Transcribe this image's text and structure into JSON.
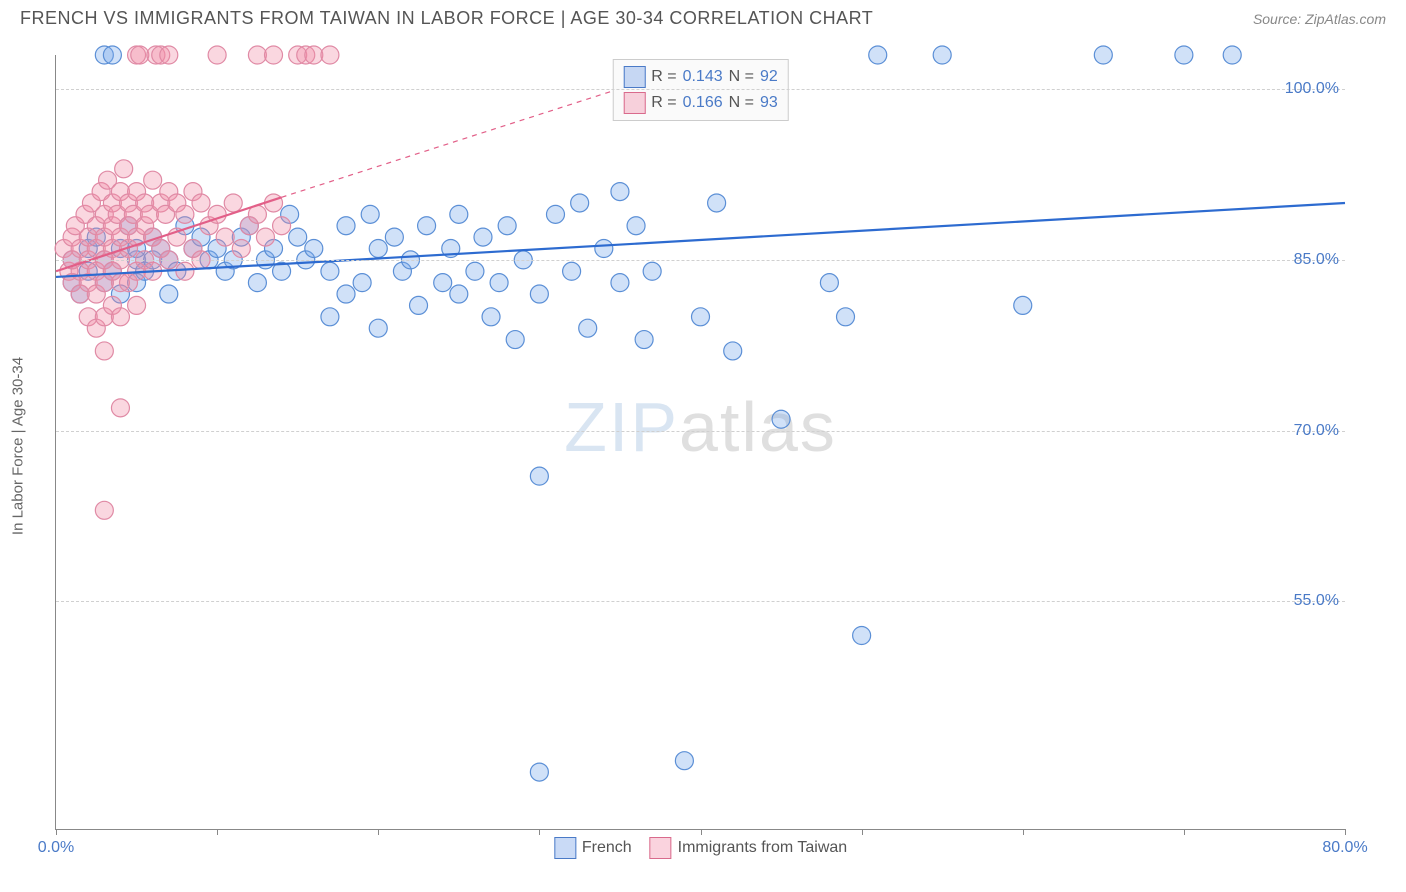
{
  "header": {
    "title": "FRENCH VS IMMIGRANTS FROM TAIWAN IN LABOR FORCE | AGE 30-34 CORRELATION CHART",
    "source_prefix": "Source: ",
    "source_name": "ZipAtlas.com"
  },
  "ylabel": "In Labor Force | Age 30-34",
  "watermark_a": "ZIP",
  "watermark_b": "atlas",
  "chart": {
    "type": "scatter",
    "background_color": "#ffffff",
    "grid_color": "#d0d0d0",
    "axis_color": "#888888",
    "label_color": "#4a7ac7",
    "xlim": [
      0,
      80
    ],
    "ylim": [
      35,
      103
    ],
    "xticks": [
      0,
      10,
      20,
      30,
      40,
      50,
      60,
      70,
      80
    ],
    "yticks": [
      55,
      70,
      85,
      100
    ],
    "xtick_labels": {
      "0": "0.0%",
      "80": "80.0%"
    },
    "ytick_labels": {
      "55": "55.0%",
      "70": "70.0%",
      "85": "85.0%",
      "100": "100.0%"
    },
    "label_fontsize": 16,
    "marker_radius": 9,
    "marker_stroke_width": 1.2,
    "line_width": 2.2,
    "series": [
      {
        "name": "French",
        "fill": "rgba(120,170,235,0.35)",
        "stroke": "#5b8fd6",
        "line_color": "#2d6bd0",
        "trend": {
          "x1": 0,
          "y1": 83.5,
          "x2": 80,
          "y2": 90,
          "dashed_from_x": null
        },
        "points": [
          [
            1,
            85
          ],
          [
            1,
            83
          ],
          [
            1.5,
            82
          ],
          [
            2,
            86
          ],
          [
            2,
            84
          ],
          [
            2.5,
            87
          ],
          [
            3,
            85
          ],
          [
            3,
            83
          ],
          [
            3,
            103
          ],
          [
            3.5,
            103
          ],
          [
            3.5,
            84
          ],
          [
            4,
            86
          ],
          [
            4,
            82
          ],
          [
            4.5,
            88
          ],
          [
            5,
            85
          ],
          [
            5,
            86
          ],
          [
            5,
            83
          ],
          [
            5.5,
            84
          ],
          [
            6,
            87
          ],
          [
            6,
            85
          ],
          [
            6.5,
            86
          ],
          [
            7,
            85
          ],
          [
            7,
            82
          ],
          [
            7.5,
            84
          ],
          [
            8,
            88
          ],
          [
            8.5,
            86
          ],
          [
            9,
            87
          ],
          [
            9.5,
            85
          ],
          [
            10,
            86
          ],
          [
            10.5,
            84
          ],
          [
            11,
            85
          ],
          [
            11.5,
            87
          ],
          [
            12,
            88
          ],
          [
            12.5,
            83
          ],
          [
            13,
            85
          ],
          [
            13.5,
            86
          ],
          [
            14,
            84
          ],
          [
            14.5,
            89
          ],
          [
            15,
            87
          ],
          [
            15.5,
            85
          ],
          [
            16,
            86
          ],
          [
            17,
            84
          ],
          [
            17,
            80
          ],
          [
            18,
            88
          ],
          [
            18,
            82
          ],
          [
            19,
            83
          ],
          [
            19.5,
            89
          ],
          [
            20,
            86
          ],
          [
            20,
            79
          ],
          [
            21,
            87
          ],
          [
            21.5,
            84
          ],
          [
            22,
            85
          ],
          [
            22.5,
            81
          ],
          [
            23,
            88
          ],
          [
            24,
            83
          ],
          [
            24.5,
            86
          ],
          [
            25,
            89
          ],
          [
            25,
            82
          ],
          [
            26,
            84
          ],
          [
            26.5,
            87
          ],
          [
            27,
            80
          ],
          [
            27.5,
            83
          ],
          [
            28,
            88
          ],
          [
            28.5,
            78
          ],
          [
            29,
            85
          ],
          [
            30,
            82
          ],
          [
            30,
            66
          ],
          [
            30,
            40
          ],
          [
            31,
            89
          ],
          [
            32,
            84
          ],
          [
            32.5,
            90
          ],
          [
            33,
            79
          ],
          [
            34,
            86
          ],
          [
            35,
            83
          ],
          [
            35,
            91
          ],
          [
            36,
            88
          ],
          [
            36.5,
            78
          ],
          [
            37,
            84
          ],
          [
            39,
            41
          ],
          [
            40,
            80
          ],
          [
            41,
            90
          ],
          [
            42,
            77
          ],
          [
            45,
            71
          ],
          [
            48,
            83
          ],
          [
            49,
            80
          ],
          [
            50,
            52
          ],
          [
            51,
            103
          ],
          [
            55,
            103
          ],
          [
            60,
            81
          ],
          [
            65,
            103
          ],
          [
            70,
            103
          ],
          [
            73,
            103
          ]
        ]
      },
      {
        "name": "Immigrants from Taiwan",
        "fill": "rgba(240,140,165,0.35)",
        "stroke": "#e08aa5",
        "line_color": "#e25f88",
        "trend": {
          "x1": 0,
          "y1": 84,
          "x2": 14,
          "y2": 90.5,
          "dashed_to": [
            36,
            100.5
          ]
        },
        "points": [
          [
            0.5,
            86
          ],
          [
            0.8,
            84
          ],
          [
            1,
            87
          ],
          [
            1,
            85
          ],
          [
            1,
            83
          ],
          [
            1.2,
            88
          ],
          [
            1.5,
            86
          ],
          [
            1.5,
            84
          ],
          [
            1.5,
            82
          ],
          [
            1.8,
            89
          ],
          [
            2,
            87
          ],
          [
            2,
            85
          ],
          [
            2,
            83
          ],
          [
            2,
            80
          ],
          [
            2.2,
            90
          ],
          [
            2.5,
            88
          ],
          [
            2.5,
            86
          ],
          [
            2.5,
            84
          ],
          [
            2.5,
            82
          ],
          [
            2.5,
            79
          ],
          [
            2.8,
            91
          ],
          [
            3,
            89
          ],
          [
            3,
            87
          ],
          [
            3,
            85
          ],
          [
            3,
            83
          ],
          [
            3,
            80
          ],
          [
            3,
            77
          ],
          [
            3,
            63
          ],
          [
            3.2,
            92
          ],
          [
            3.5,
            90
          ],
          [
            3.5,
            88
          ],
          [
            3.5,
            86
          ],
          [
            3.5,
            84
          ],
          [
            3.5,
            81
          ],
          [
            3.8,
            89
          ],
          [
            4,
            91
          ],
          [
            4,
            87
          ],
          [
            4,
            85
          ],
          [
            4,
            83
          ],
          [
            4,
            80
          ],
          [
            4,
            72
          ],
          [
            4.2,
            93
          ],
          [
            4.5,
            90
          ],
          [
            4.5,
            88
          ],
          [
            4.5,
            86
          ],
          [
            4.5,
            83
          ],
          [
            4.8,
            89
          ],
          [
            5,
            91
          ],
          [
            5,
            87
          ],
          [
            5,
            84
          ],
          [
            5,
            81
          ],
          [
            5,
            103
          ],
          [
            5.2,
            103
          ],
          [
            5.5,
            90
          ],
          [
            5.5,
            88
          ],
          [
            5.5,
            85
          ],
          [
            5.8,
            89
          ],
          [
            6,
            92
          ],
          [
            6,
            87
          ],
          [
            6,
            84
          ],
          [
            6.2,
            103
          ],
          [
            6.5,
            103
          ],
          [
            6.5,
            90
          ],
          [
            6.5,
            86
          ],
          [
            6.8,
            89
          ],
          [
            7,
            91
          ],
          [
            7,
            85
          ],
          [
            7,
            103
          ],
          [
            7.5,
            90
          ],
          [
            7.5,
            87
          ],
          [
            8,
            89
          ],
          [
            8,
            84
          ],
          [
            8.5,
            91
          ],
          [
            8.5,
            86
          ],
          [
            9,
            90
          ],
          [
            9,
            85
          ],
          [
            9.5,
            88
          ],
          [
            10,
            89
          ],
          [
            10,
            103
          ],
          [
            10.5,
            87
          ],
          [
            11,
            90
          ],
          [
            11.5,
            86
          ],
          [
            12,
            88
          ],
          [
            12.5,
            89
          ],
          [
            12.5,
            103
          ],
          [
            13,
            87
          ],
          [
            13.5,
            90
          ],
          [
            13.5,
            103
          ],
          [
            14,
            88
          ],
          [
            15,
            103
          ],
          [
            15.5,
            103
          ],
          [
            16,
            103
          ],
          [
            17,
            103
          ]
        ]
      }
    ]
  },
  "legend_top": {
    "rows": [
      {
        "swatch": "blue",
        "r_label": "R = ",
        "r_val": "0.143",
        "n_label": "   N = ",
        "n_val": "92"
      },
      {
        "swatch": "pink",
        "r_label": "R = ",
        "r_val": "0.166",
        "n_label": "   N = ",
        "n_val": "93"
      }
    ]
  },
  "legend_bottom": {
    "items": [
      {
        "swatch": "blue",
        "label": "French"
      },
      {
        "swatch": "pink",
        "label": "Immigrants from Taiwan"
      }
    ]
  }
}
